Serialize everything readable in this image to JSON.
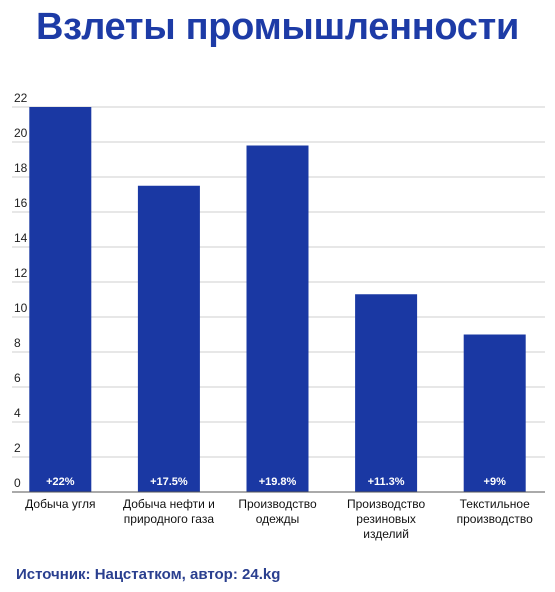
{
  "title": "Взлеты промышленности",
  "source": "Источник: Нацстатком, автор: 24.kg",
  "colors": {
    "bar": "#1a38a3",
    "title": "#1d3ba6",
    "grid": "#cfcfcf",
    "axis": "#555555"
  },
  "chart_data": {
    "type": "bar",
    "title": "Взлеты промышленности",
    "xlabel": "",
    "ylabel": "",
    "ylim": [
      0,
      22
    ],
    "yticks": [
      "0",
      "2",
      "4",
      "6",
      "8",
      "10",
      "12",
      "14",
      "16",
      "18",
      "20",
      "22"
    ],
    "grid": true,
    "legend": "none",
    "categories": [
      [
        "Добыча угля"
      ],
      [
        "Добыча нефти и",
        "природного газа"
      ],
      [
        "Производство",
        "одежды"
      ],
      [
        "Производство",
        "резиновых",
        "изделий"
      ],
      [
        "Текстильное",
        "производство"
      ]
    ],
    "values": [
      22,
      17.5,
      19.8,
      11.3,
      9
    ],
    "labels": [
      "+22%",
      "+17.5%",
      "+19.8%",
      "+11.3%",
      "+9%"
    ]
  }
}
